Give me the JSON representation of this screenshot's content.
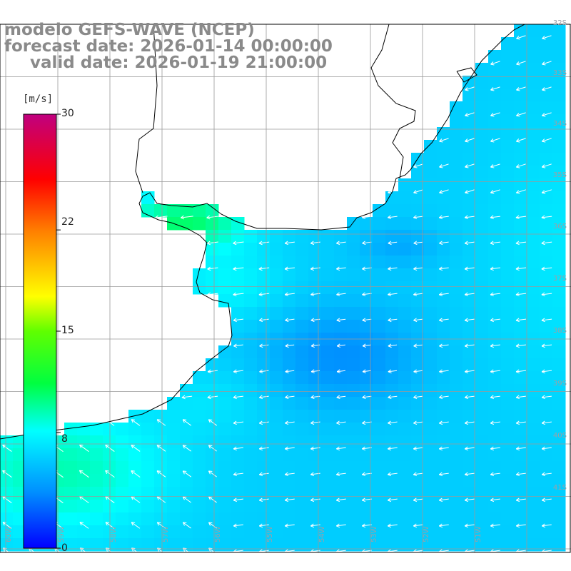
{
  "title": {
    "line1": "modelo GEFS-WAVE (NCEP)",
    "line2": "forecast date: 2026-01-14 00:00:00",
    "line3": "valid date: 2026-01-19 21:00:00"
  },
  "colorbar": {
    "unit": "[m/s]",
    "min": 0,
    "max": 30,
    "ticks": [
      {
        "value": 30,
        "label": "30"
      },
      {
        "value": 22,
        "label": "22"
      },
      {
        "value": 15,
        "label": "15"
      },
      {
        "value": 8,
        "label": "8"
      },
      {
        "value": 0,
        "label": "0"
      }
    ],
    "stops": [
      "#0000ff",
      "#0090ff",
      "#00ffff",
      "#00ff00",
      "#ffff00",
      "#ff8000",
      "#ff0000",
      "#c0007f"
    ]
  },
  "map": {
    "land_color": "#ffffff",
    "coast_color": "#000000",
    "grid_color": "#9a9a9a",
    "arrow_color": "#ffffff",
    "lat_labels": [
      "32S",
      "33S",
      "34S",
      "35S",
      "36S",
      "37S",
      "38S",
      "39S",
      "40S",
      "41S"
    ],
    "lon_labels": [
      "60W",
      "59W",
      "58W",
      "57W",
      "56W",
      "55W",
      "54W",
      "53W",
      "52W",
      "51W"
    ]
  }
}
